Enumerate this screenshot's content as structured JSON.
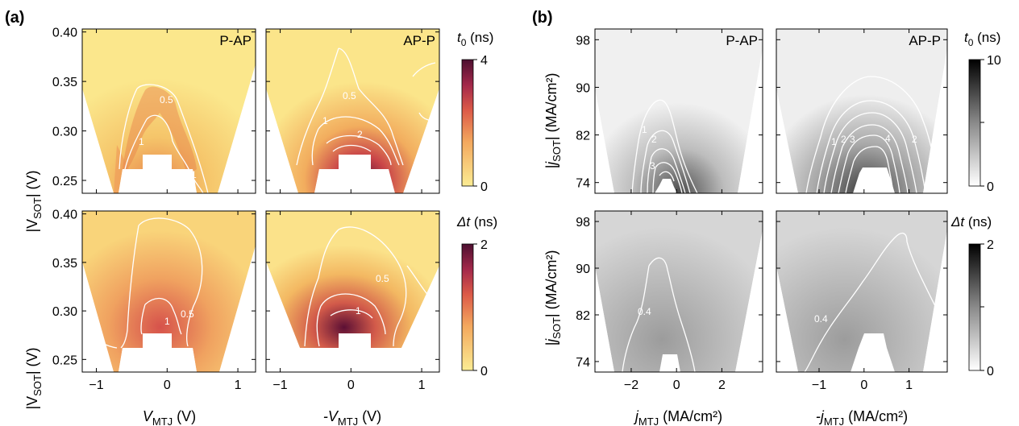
{
  "figure": {
    "panel_a_tag": "(a)",
    "panel_b_tag": "(b)"
  },
  "chart_data": [
    {
      "type": "heatmap",
      "panel": "(a)",
      "subplot_titles": [
        "P-AP",
        "AP-P",
        "",
        ""
      ],
      "ylabel_main": "|V",
      "ylabel_sub": "SOT",
      "ylabel_tail": "| (V)",
      "xlabel_left_main": "V",
      "xlabel_left_sub": "MTJ",
      "xlabel_left_tail": " (V)",
      "xlabel_right_main": "-V",
      "xlabel_right_sub": "MTJ",
      "xlabel_right_tail": " (V)",
      "yticks": [
        0.4,
        0.35,
        0.3,
        0.25
      ],
      "ytick_labels": [
        "0.40",
        "0.35",
        "0.30",
        "0.25"
      ],
      "xticks": [
        -1,
        0,
        1
      ],
      "xtick_labels": [
        "−1",
        "0",
        "1"
      ],
      "xlim": [
        -1.2,
        1.25
      ],
      "ylim": [
        0.237,
        0.403
      ],
      "colormap": "yellow-orange-red-purple",
      "colors": {
        "low": "#fbe98e",
        "mid": "#e9734c",
        "high": "#521033"
      },
      "colorbars": [
        {
          "title_main": "t",
          "title_sub": "0",
          "title_tail": " (ns)",
          "min": 0,
          "max": 4,
          "tick_labels": [
            "4",
            "0"
          ]
        },
        {
          "title_main": "Δt",
          "title_sub": "",
          "title_tail": " (ns)",
          "min": 0,
          "max": 2,
          "tick_labels": [
            "2",
            "0"
          ]
        }
      ],
      "contour_labels": {
        "top_left": [
          "0.5",
          "1",
          "1"
        ],
        "top_right": [
          "0.5",
          "1",
          "2"
        ],
        "bottom_left": [
          "1",
          "0.5"
        ],
        "bottom_right": [
          "0.5",
          "1"
        ]
      }
    },
    {
      "type": "heatmap",
      "panel": "(b)",
      "subplot_titles": [
        "P-AP",
        "AP-P",
        "",
        ""
      ],
      "ylabel_main": "|j",
      "ylabel_sub": "SOT",
      "ylabel_tail": "| (MA/cm²)",
      "xlabel_left_main": "j",
      "xlabel_left_sub": "MTJ",
      "xlabel_left_tail": " (MA/cm²)",
      "xlabel_right_main": "-j",
      "xlabel_right_sub": "MTJ",
      "xlabel_right_tail": " (MA/cm²)",
      "yticks": [
        98,
        90,
        82,
        74
      ],
      "ytick_labels": [
        "98",
        "90",
        "82",
        "74"
      ],
      "xticks_left": [
        -2,
        0,
        2
      ],
      "xtick_labels_left": [
        "−2",
        "0",
        "2"
      ],
      "xticks_right": [
        -1,
        0,
        1
      ],
      "xtick_labels_right": [
        "−1",
        "0",
        "1"
      ],
      "xlim_left": [
        -3.6,
        3.8
      ],
      "xlim_right": [
        -1.95,
        1.85
      ],
      "ylim": [
        72.2,
        99.8
      ],
      "colormap": "grayscale",
      "colors": {
        "low": "#f4f4f4",
        "high": "#111111"
      },
      "colorbars": [
        {
          "title_main": "t",
          "title_sub": "0",
          "title_tail": " (ns)",
          "min": 0,
          "max": 10,
          "tick_labels": [
            "10",
            "0"
          ]
        },
        {
          "title_main": "Δt",
          "title_sub": "",
          "title_tail": " (ns)",
          "min": 0,
          "max": 2,
          "tick_labels": [
            "2",
            "0"
          ]
        }
      ],
      "contour_labels": {
        "top_left": [
          "1",
          "2",
          "3"
        ],
        "top_right": [
          "1",
          "2",
          "3",
          "4",
          "2"
        ],
        "bottom_left": [
          "0.4"
        ],
        "bottom_right": [
          "0.4"
        ]
      }
    }
  ]
}
